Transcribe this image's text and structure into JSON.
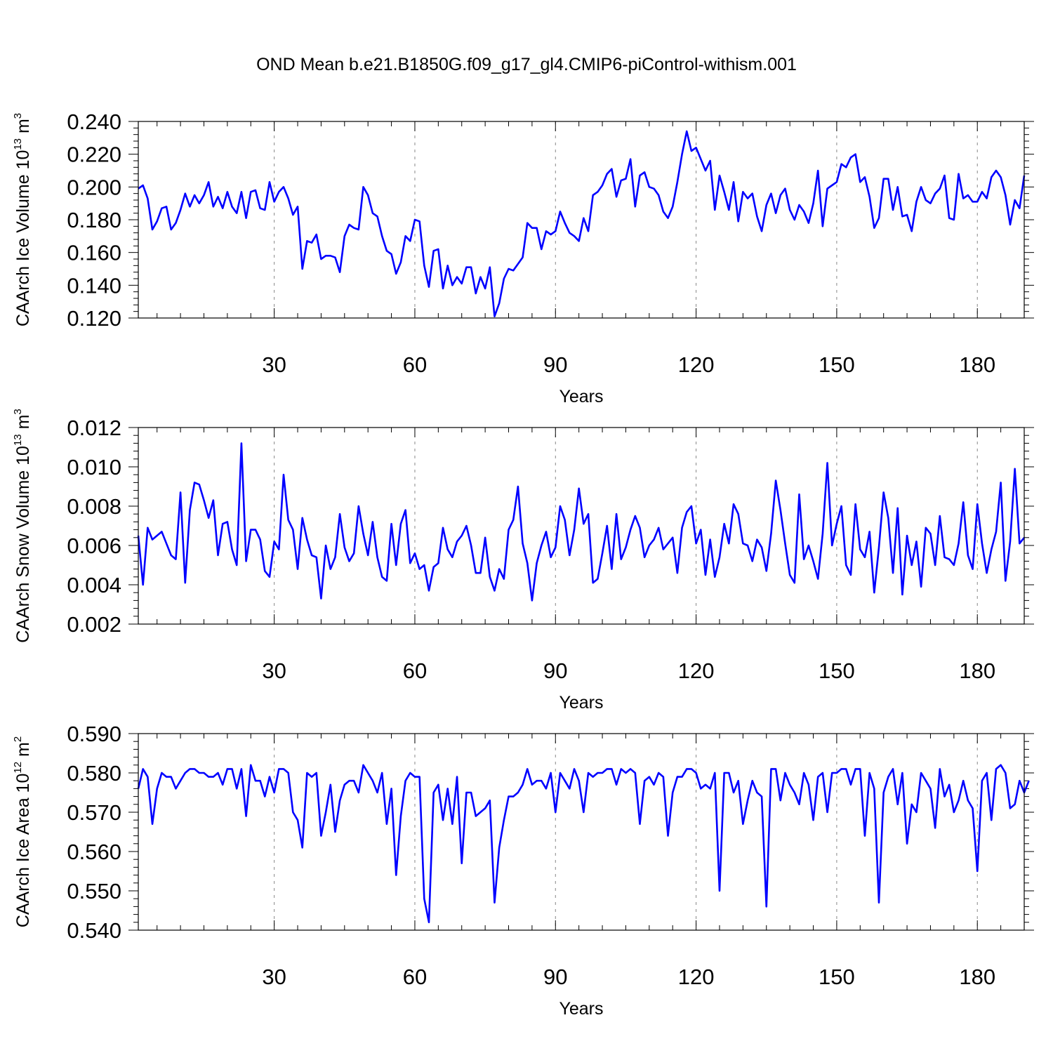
{
  "title": "OND Mean b.e21.B1850G.f09_g17_gl4.CMIP6-piControl-withism.001",
  "colors": {
    "series": "#0000ff",
    "axes": "#000000",
    "grid": "#888888"
  },
  "chart_data": [
    {
      "type": "line",
      "ylabel_main": "CAArch Ice Volume 10",
      "ylabel_exp": "13",
      "ylabel_unit": " m",
      "ylabel_unit_exp": "3",
      "xlabel": "Years",
      "xlim": [
        1,
        190
      ],
      "ylim": [
        0.12,
        0.24
      ],
      "yticks": [
        0.12,
        0.14,
        0.16,
        0.18,
        0.2,
        0.22,
        0.24
      ],
      "ytick_labels": [
        "0.120",
        "0.140",
        "0.160",
        "0.180",
        "0.200",
        "0.220",
        "0.240"
      ],
      "xticks": [
        30,
        60,
        90,
        120,
        150,
        180
      ],
      "xtick_labels": [
        "30",
        "60",
        "90",
        "120",
        "150",
        "180"
      ],
      "grid": "dashed vertical at major x ticks",
      "series": [
        {
          "name": "ice_volume",
          "values": [
            0.199,
            0.201,
            0.193,
            0.174,
            0.179,
            0.187,
            0.188,
            0.174,
            0.178,
            0.186,
            0.196,
            0.188,
            0.195,
            0.19,
            0.195,
            0.203,
            0.188,
            0.194,
            0.187,
            0.197,
            0.188,
            0.184,
            0.197,
            0.181,
            0.197,
            0.198,
            0.187,
            0.186,
            0.203,
            0.191,
            0.197,
            0.2,
            0.193,
            0.183,
            0.188,
            0.15,
            0.167,
            0.166,
            0.171,
            0.156,
            0.158,
            0.158,
            0.157,
            0.148,
            0.17,
            0.177,
            0.175,
            0.174,
            0.2,
            0.195,
            0.184,
            0.182,
            0.17,
            0.161,
            0.159,
            0.147,
            0.154,
            0.17,
            0.167,
            0.18,
            0.179,
            0.152,
            0.139,
            0.161,
            0.162,
            0.138,
            0.152,
            0.14,
            0.145,
            0.141,
            0.151,
            0.151,
            0.135,
            0.145,
            0.138,
            0.151,
            0.121,
            0.129,
            0.144,
            0.15,
            0.149,
            0.153,
            0.157,
            0.178,
            0.175,
            0.175,
            0.162,
            0.173,
            0.171,
            0.173,
            0.185,
            0.178,
            0.172,
            0.17,
            0.167,
            0.181,
            0.173,
            0.195,
            0.197,
            0.201,
            0.208,
            0.211,
            0.194,
            0.204,
            0.205,
            0.217,
            0.188,
            0.207,
            0.209,
            0.2,
            0.199,
            0.195,
            0.185,
            0.181,
            0.188,
            0.203,
            0.22,
            0.234,
            0.222,
            0.224,
            0.217,
            0.21,
            0.216,
            0.186,
            0.207,
            0.197,
            0.186,
            0.203,
            0.179,
            0.197,
            0.193,
            0.196,
            0.182,
            0.173,
            0.189,
            0.196,
            0.184,
            0.195,
            0.199,
            0.186,
            0.18,
            0.189,
            0.185,
            0.178,
            0.19,
            0.21,
            0.176,
            0.199,
            0.201,
            0.203,
            0.214,
            0.212,
            0.218,
            0.22,
            0.203,
            0.206,
            0.194,
            0.175,
            0.181,
            0.205,
            0.205,
            0.186,
            0.2,
            0.182,
            0.183,
            0.173,
            0.191,
            0.2,
            0.192,
            0.19,
            0.196,
            0.199,
            0.207,
            0.181,
            0.18,
            0.208,
            0.193,
            0.195,
            0.191,
            0.191,
            0.197,
            0.193,
            0.206,
            0.21,
            0.206,
            0.195,
            0.177,
            0.192,
            0.187,
            0.207
          ]
        }
      ]
    },
    {
      "type": "line",
      "ylabel_main": "CAArch Snow Volume 10",
      "ylabel_exp": "13",
      "ylabel_unit": " m",
      "ylabel_unit_exp": "3",
      "xlabel": "Years",
      "xlim": [
        1,
        190
      ],
      "ylim": [
        0.002,
        0.012
      ],
      "yticks": [
        0.002,
        0.004,
        0.006,
        0.008,
        0.01,
        0.012
      ],
      "ytick_labels": [
        "0.002",
        "0.004",
        "0.006",
        "0.008",
        "0.010",
        "0.012"
      ],
      "xticks": [
        30,
        60,
        90,
        120,
        150,
        180
      ],
      "xtick_labels": [
        "30",
        "60",
        "90",
        "120",
        "150",
        "180"
      ],
      "grid": "dashed vertical at major x ticks",
      "series": [
        {
          "name": "snow_volume",
          "values": [
            0.0065,
            0.004,
            0.0069,
            0.0063,
            0.0065,
            0.0067,
            0.0061,
            0.0055,
            0.0053,
            0.0087,
            0.0041,
            0.0078,
            0.0092,
            0.0091,
            0.0083,
            0.0074,
            0.0083,
            0.0055,
            0.0071,
            0.0072,
            0.0058,
            0.005,
            0.0112,
            0.0052,
            0.0068,
            0.0068,
            0.0063,
            0.0047,
            0.0044,
            0.0062,
            0.0058,
            0.0096,
            0.0073,
            0.0068,
            0.0048,
            0.0074,
            0.0063,
            0.0055,
            0.0054,
            0.0033,
            0.006,
            0.0048,
            0.0054,
            0.0076,
            0.0059,
            0.0052,
            0.0056,
            0.008,
            0.0066,
            0.0055,
            0.0072,
            0.0054,
            0.0044,
            0.0042,
            0.0071,
            0.005,
            0.0071,
            0.0078,
            0.0051,
            0.0056,
            0.0048,
            0.005,
            0.0037,
            0.0049,
            0.0051,
            0.0069,
            0.0058,
            0.0054,
            0.0062,
            0.0065,
            0.007,
            0.006,
            0.0046,
            0.0046,
            0.0064,
            0.0044,
            0.0037,
            0.0048,
            0.0043,
            0.0068,
            0.0073,
            0.009,
            0.0061,
            0.0051,
            0.0032,
            0.0051,
            0.006,
            0.0067,
            0.0054,
            0.0059,
            0.008,
            0.0073,
            0.0055,
            0.0068,
            0.0089,
            0.0071,
            0.0076,
            0.0041,
            0.0043,
            0.0056,
            0.007,
            0.0048,
            0.0076,
            0.0053,
            0.0059,
            0.0068,
            0.0075,
            0.0069,
            0.0054,
            0.006,
            0.0063,
            0.0069,
            0.0058,
            0.0061,
            0.0064,
            0.0046,
            0.0069,
            0.0077,
            0.008,
            0.0061,
            0.0068,
            0.0045,
            0.0063,
            0.0044,
            0.0054,
            0.0071,
            0.0061,
            0.0081,
            0.0076,
            0.0061,
            0.006,
            0.0052,
            0.0063,
            0.0059,
            0.0047,
            0.0066,
            0.0093,
            0.0078,
            0.0061,
            0.0045,
            0.0041,
            0.0086,
            0.0053,
            0.006,
            0.0052,
            0.0043,
            0.0066,
            0.0102,
            0.006,
            0.0071,
            0.008,
            0.005,
            0.0045,
            0.0081,
            0.0058,
            0.0054,
            0.0067,
            0.0036,
            0.0059,
            0.0087,
            0.0074,
            0.0046,
            0.0079,
            0.0035,
            0.0065,
            0.005,
            0.0062,
            0.0039,
            0.0069,
            0.0066,
            0.005,
            0.0075,
            0.0054,
            0.0053,
            0.005,
            0.0061,
            0.0082,
            0.0055,
            0.0048,
            0.0081,
            0.0061,
            0.0046,
            0.0058,
            0.0067,
            0.0092,
            0.0042,
            0.0062,
            0.0099,
            0.0061,
            0.0064
          ]
        }
      ]
    },
    {
      "type": "line",
      "ylabel_main": "CAArch Ice Area 10",
      "ylabel_exp": "12",
      "ylabel_unit": " m",
      "ylabel_unit_exp": "2",
      "xlabel": "Years",
      "xlim": [
        1,
        190
      ],
      "ylim": [
        0.54,
        0.59
      ],
      "yticks": [
        0.54,
        0.55,
        0.56,
        0.57,
        0.58,
        0.59
      ],
      "ytick_labels": [
        "0.540",
        "0.550",
        "0.560",
        "0.570",
        "0.580",
        "0.590"
      ],
      "xticks": [
        30,
        60,
        90,
        120,
        150,
        180
      ],
      "xtick_labels": [
        "30",
        "60",
        "90",
        "120",
        "150",
        "180"
      ],
      "grid": "dashed vertical at major x ticks",
      "series": [
        {
          "name": "ice_area",
          "values": [
            0.576,
            0.581,
            0.579,
            0.567,
            0.576,
            0.58,
            0.579,
            0.579,
            0.576,
            0.578,
            0.58,
            0.581,
            0.581,
            0.58,
            0.58,
            0.579,
            0.579,
            0.58,
            0.577,
            0.581,
            0.581,
            0.576,
            0.581,
            0.569,
            0.582,
            0.578,
            0.578,
            0.574,
            0.579,
            0.575,
            0.581,
            0.581,
            0.58,
            0.57,
            0.568,
            0.561,
            0.58,
            0.579,
            0.58,
            0.564,
            0.57,
            0.577,
            0.565,
            0.573,
            0.577,
            0.578,
            0.578,
            0.575,
            0.582,
            0.58,
            0.578,
            0.575,
            0.58,
            0.567,
            0.576,
            0.554,
            0.569,
            0.578,
            0.58,
            0.579,
            0.579,
            0.548,
            0.542,
            0.575,
            0.577,
            0.568,
            0.576,
            0.567,
            0.579,
            0.557,
            0.575,
            0.575,
            0.569,
            0.57,
            0.571,
            0.573,
            0.547,
            0.561,
            0.568,
            0.574,
            0.574,
            0.575,
            0.577,
            0.581,
            0.577,
            0.578,
            0.578,
            0.576,
            0.58,
            0.57,
            0.58,
            0.578,
            0.576,
            0.581,
            0.578,
            0.57,
            0.58,
            0.579,
            0.58,
            0.58,
            0.581,
            0.581,
            0.577,
            0.581,
            0.58,
            0.581,
            0.58,
            0.567,
            0.578,
            0.579,
            0.577,
            0.58,
            0.579,
            0.564,
            0.575,
            0.579,
            0.579,
            0.581,
            0.581,
            0.58,
            0.576,
            0.577,
            0.576,
            0.58,
            0.55,
            0.58,
            0.58,
            0.575,
            0.578,
            0.567,
            0.573,
            0.578,
            0.575,
            0.574,
            0.546,
            0.581,
            0.581,
            0.573,
            0.58,
            0.577,
            0.575,
            0.572,
            0.58,
            0.577,
            0.568,
            0.579,
            0.58,
            0.57,
            0.58,
            0.58,
            0.581,
            0.581,
            0.577,
            0.581,
            0.581,
            0.564,
            0.58,
            0.576,
            0.547,
            0.575,
            0.579,
            0.581,
            0.572,
            0.58,
            0.562,
            0.572,
            0.57,
            0.58,
            0.578,
            0.576,
            0.566,
            0.581,
            0.574,
            0.577,
            0.57,
            0.573,
            0.578,
            0.573,
            0.571,
            0.555,
            0.578,
            0.58,
            0.568,
            0.581,
            0.582,
            0.58,
            0.571,
            0.572,
            0.578,
            0.575,
            0.578
          ]
        }
      ]
    }
  ]
}
